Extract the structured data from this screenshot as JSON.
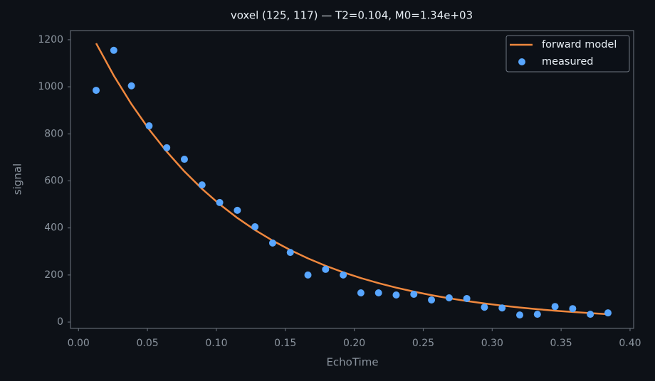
{
  "chart_data": {
    "type": "line",
    "title": "voxel (125, 117) — T2=0.104, M0=1.34e+03",
    "x_label": "EchoTime",
    "y_label": "signal",
    "x": [
      0.0128,
      0.0256,
      0.0384,
      0.0512,
      0.064,
      0.0768,
      0.0896,
      0.1024,
      0.1152,
      0.128,
      0.1408,
      0.1536,
      0.1664,
      0.1792,
      0.192,
      0.2048,
      0.2176,
      0.2304,
      0.2432,
      0.256,
      0.2688,
      0.2816,
      0.2944,
      0.3072,
      0.32,
      0.3328,
      0.3456,
      0.3584,
      0.3712,
      0.384
    ],
    "series": [
      {
        "name": "forward model",
        "type": "line",
        "color": "#f0883e",
        "values": [
          1184.8,
          1047.6,
          926.3,
          819.1,
          724.2,
          640.3,
          566.2,
          500.6,
          442.6,
          391.4,
          346.1,
          306.0,
          270.6,
          239.2,
          211.5,
          187.0,
          165.4,
          146.2,
          129.3,
          114.3,
          101.1,
          89.4,
          79.0,
          69.9,
          61.8,
          54.6,
          48.3,
          42.7,
          37.8,
          33.4
        ]
      },
      {
        "name": "measured",
        "type": "scatter",
        "color": "#58a6ff",
        "values": [
          985,
          1155,
          1004,
          834,
          741,
          692,
          583,
          508,
          475,
          405,
          336,
          296,
          200,
          224,
          200,
          124,
          124,
          115,
          118,
          94,
          103,
          100,
          63,
          60,
          30,
          33,
          66,
          57,
          33,
          39
        ]
      }
    ],
    "xlim": [
      -0.0058,
      0.4026
    ],
    "ylim": [
      -27,
      1239
    ],
    "xticks": [
      {
        "value": 0,
        "label": "0.00"
      },
      {
        "value": 0.05,
        "label": "0.05"
      },
      {
        "value": 0.1,
        "label": "0.10"
      },
      {
        "value": 0.15,
        "label": "0.15"
      },
      {
        "value": 0.2,
        "label": "0.20"
      },
      {
        "value": 0.25,
        "label": "0.25"
      },
      {
        "value": 0.3,
        "label": "0.30"
      },
      {
        "value": 0.35,
        "label": "0.35"
      },
      {
        "value": 0.4,
        "label": "0.40"
      }
    ],
    "yticks": [
      0,
      200,
      400,
      600,
      800,
      1000,
      1200
    ],
    "grid": false,
    "legend": "upper-right"
  }
}
